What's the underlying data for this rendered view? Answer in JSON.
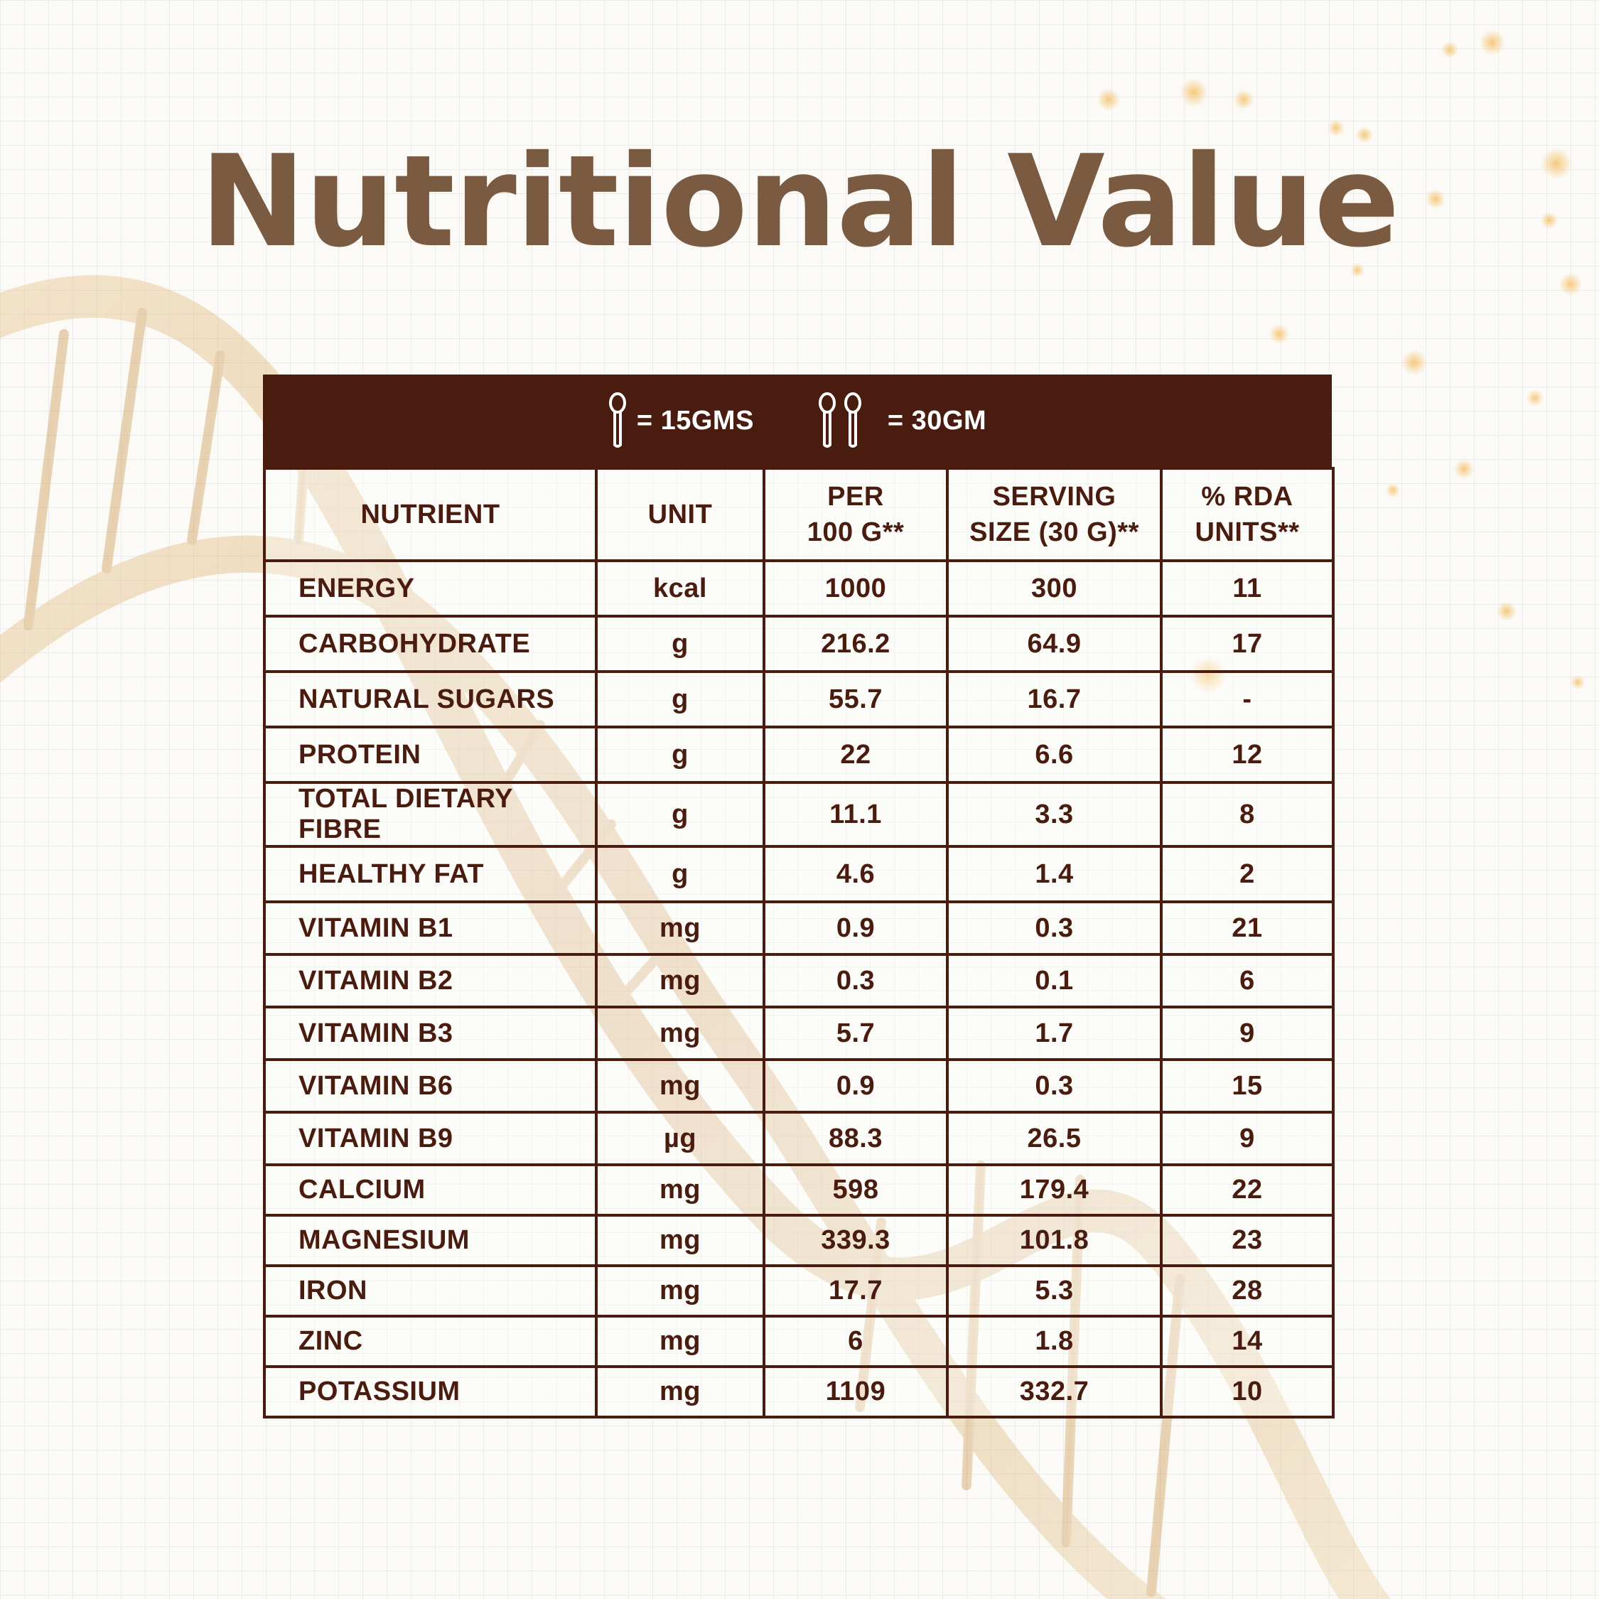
{
  "title": "Nutritional Value",
  "legend": {
    "one_spoon": "= 15GMS",
    "two_spoons": "= 30GM"
  },
  "table": {
    "headers": [
      [
        "NUTRIENT"
      ],
      [
        "UNIT"
      ],
      [
        "PER",
        "100 G**"
      ],
      [
        "SERVING",
        "SIZE (30 G)**"
      ],
      [
        "% RDA",
        "UNITS**"
      ]
    ],
    "rows": [
      [
        "ENERGY",
        "kcal",
        "1000",
        "300",
        "11"
      ],
      [
        "CARBOHYDRATE",
        "g",
        "216.2",
        "64.9",
        "17"
      ],
      [
        "NATURAL SUGARS",
        "g",
        "55.7",
        "16.7",
        "-"
      ],
      [
        "PROTEIN",
        "g",
        "22",
        "6.6",
        "12"
      ],
      [
        "TOTAL DIETARY FIBRE",
        "g",
        "11.1",
        "3.3",
        "8"
      ],
      [
        "HEALTHY FAT",
        "g",
        "4.6",
        "1.4",
        "2"
      ],
      [
        "VITAMIN B1",
        "mg",
        "0.9",
        "0.3",
        "21"
      ],
      [
        "VITAMIN B2",
        "mg",
        "0.3",
        "0.1",
        "6"
      ],
      [
        "VITAMIN B3",
        "mg",
        "5.7",
        "1.7",
        "9"
      ],
      [
        "VITAMIN B6",
        "mg",
        "0.9",
        "0.3",
        "15"
      ],
      [
        "VITAMIN B9",
        "µg",
        "88.3",
        "26.5",
        "9"
      ],
      [
        "CALCIUM",
        "mg",
        "598",
        "179.4",
        "22"
      ],
      [
        "MAGNESIUM",
        "mg",
        "339.3",
        "101.8",
        "23"
      ],
      [
        "IRON",
        "mg",
        "17.7",
        "5.3",
        "28"
      ],
      [
        "ZINC",
        "mg",
        "6",
        "1.8",
        "14"
      ],
      [
        "POTASSIUM",
        "mg",
        "1109",
        "332.7",
        "10"
      ]
    ]
  },
  "colors": {
    "title": "#7a5a40",
    "table_dark": "#4a1c0f",
    "background": "#fbfaf6",
    "dna_gold": "#d6a866"
  },
  "icons": [
    "spoon-icon",
    "dna-helix-illustration",
    "sparkle-dots"
  ]
}
